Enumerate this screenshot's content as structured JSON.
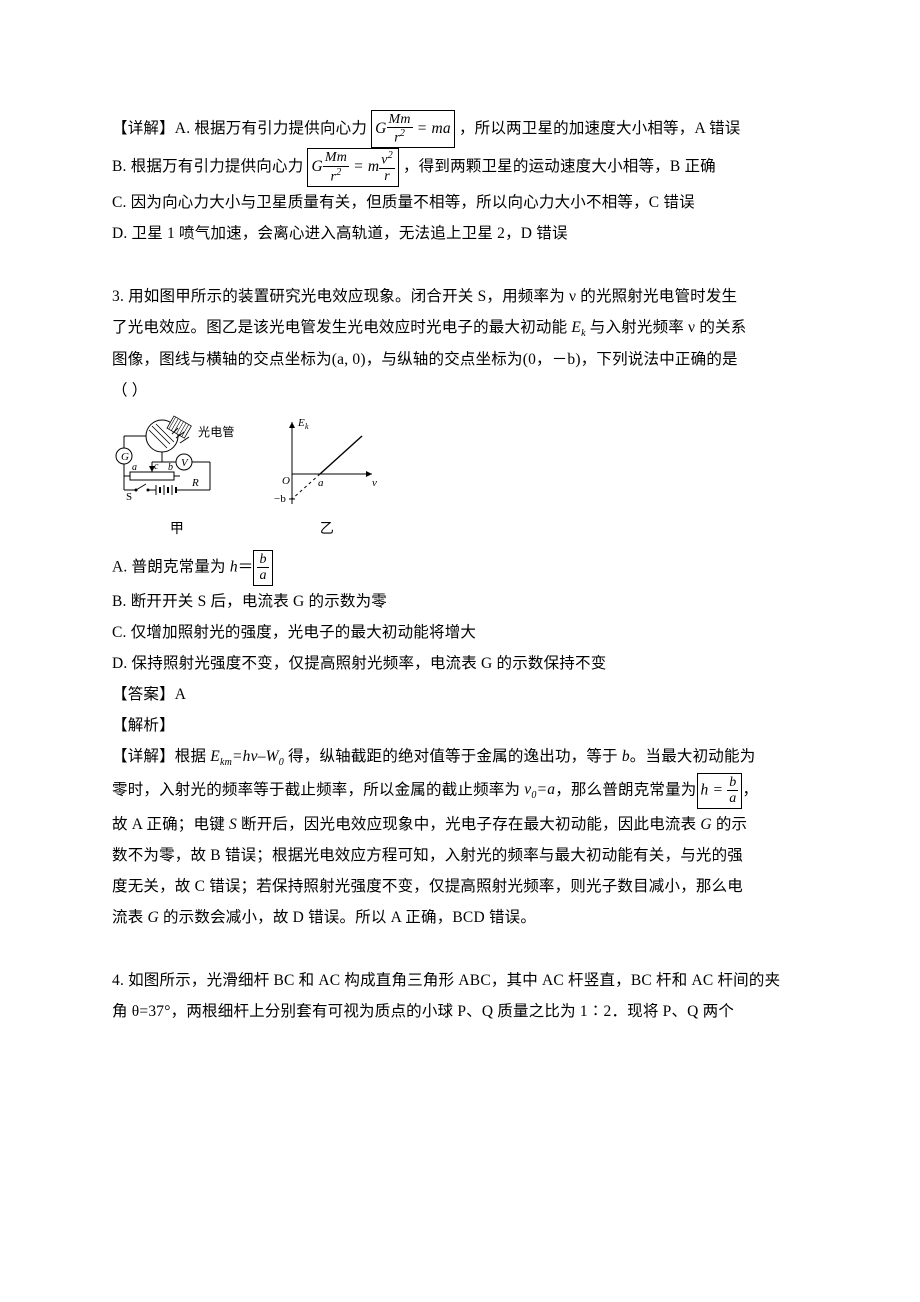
{
  "detail1": {
    "lineA_pre": "【详解】A. 根据万有引力提供向心力",
    "lineA_post": "，所以两卫星的加速度大小相等，A 错误",
    "lineB_pre": "B. 根据万有引力提供向心力",
    "lineB_post": "，得到两颗卫星的运动速度大小相等，B 正确",
    "lineC": "C. 因为向心力大小与卫星质量有关，但质量不相等，所以向心力大小不相等，C 错误",
    "lineD": "D. 卫星 1 喷气加速，会离心进入高轨道，无法追上卫星 2，D 错误",
    "eqA": {
      "lhs": "G",
      "num": "Mm",
      "den_html": "r<span class='sup'>2</span>",
      "rhs": " = ma"
    },
    "eqB": {
      "lhs": "G",
      "num1": "Mm",
      "den1_html": "r<span class='sup'>2</span>",
      "mid": " = m",
      "num2_html": "v<span class='sup'>2</span>",
      "den2": "r"
    }
  },
  "q3": {
    "stem1": "3. 用如图甲所示的装置研究光电效应现象。闭合开关 S，用频率为 ν 的光照射光电管时发生",
    "stem2_pre": "了光电效应。图乙是该光电管发生光电效应时光电子的最大初动能 ",
    "stem2_ek": "E",
    "stem2_ek_sub": "k",
    "stem2_post": " 与入射光频率 ν 的关系",
    "stem3": "图像，图线与横轴的交点坐标为(a, 0)，与纵轴的交点坐标为(0，－b)，下列说法中正确的是",
    "stem4": "（     ）",
    "optA_pre": "A.  普朗克常量为 ",
    "optA_h": "h",
    "optA_eq": "＝",
    "optA_frac": {
      "num": "b",
      "den": "a"
    },
    "optB": "B.  断开开关 S 后，电流表 G 的示数为零",
    "optC": "C.  仅增加照射光的强度，光电子的最大初动能将增大",
    "optD": "D.  保持照射光强度不变，仅提高照射光频率，电流表 G 的示数保持不变",
    "answer": "【答案】A",
    "jiexi": "【解析】",
    "detail": {
      "p1_pre": "【详解】根据 ",
      "p1_ekm_html": "E<span class='sub'>km</span>=hν–W<span class='sub'>0</span>",
      "p1_mid": " 得，纵轴截距的绝对值等于金属的逸出功，等于 ",
      "p1_b": "b",
      "p1_post": "。当最大初动能为",
      "p2_pre": "零时，入射光的频率等于截止频率，所以金属的截止频率为 ",
      "p2_nu_html": "ν<span class='sub'>0</span>=a",
      "p2_mid": "，那么普朗克常量为",
      "p2_box_h": "h = ",
      "p2_frac": {
        "num": "b",
        "den": "a"
      },
      "p2_post": "，",
      "p3_pre": "故 A 正确；电键 ",
      "p3_S": "S",
      "p3_mid1": " 断开后，因光电效应现象中，光电子存在最大初动能，因此电流表 ",
      "p3_G": "G",
      "p3_post": " 的示",
      "p4": "数不为零，故 B 错误；根据光电效应方程可知，入射光的频率与最大初动能有关，与光的强",
      "p5": "度无关，故 C 错误；若保持照射光强度不变，仅提高照射光频率，则光子数目减小，那么电",
      "p6_pre": "流表 ",
      "p6_G": "G",
      "p6_post": " 的示数会减小，故 D 错误。所以 A 正确，BCD 错误。"
    },
    "figures": {
      "circuit": {
        "label_tube": "光电管",
        "label_G": "G",
        "label_V": "V",
        "label_a": "a",
        "label_c": "c",
        "label_b": "b",
        "label_S": "S",
        "label_R": "R",
        "caption": "甲",
        "colors": {
          "stroke": "#000000",
          "fill": "#ffffff",
          "hatch": "#000000"
        }
      },
      "graph": {
        "x_axis": "ν",
        "y_axis_html": "E<tspan font-size='9' dy='3'>k</tspan>",
        "a_label": "a",
        "neg_b_label": "−b",
        "origin_label": "O",
        "caption": "乙",
        "colors": {
          "stroke": "#000000"
        }
      }
    }
  },
  "q4": {
    "line1": "4. 如图所示，光滑细杆 BC 和 AC 构成直角三角形 ABC，其中 AC 杆竖直，BC 杆和 AC 杆间的夹",
    "line2": "角 θ=37°，两根细杆上分别套有可视为质点的小球 P、Q 质量之比为 1∶2．现将 P、Q 两个"
  }
}
